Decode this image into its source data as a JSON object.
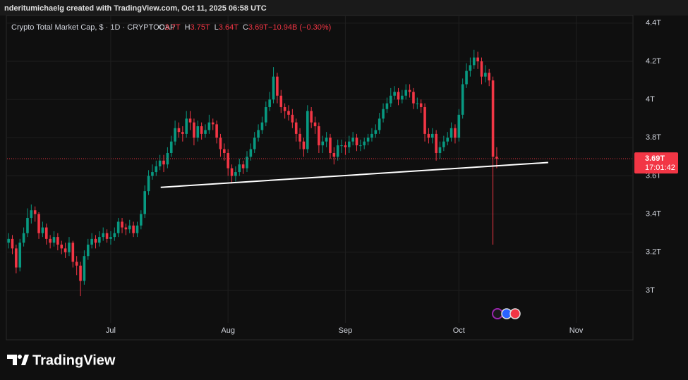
{
  "header": {
    "credit": "nderitumichaelg created with TradingView.com, Oct 11, 2025 06:58 UTC",
    "brand": "TradingView"
  },
  "chart_data": {
    "type": "candlestick",
    "title": "Crypto Total Market Cap, $ · 1D · CRYPTOCAP",
    "ohlc_legend": [
      {
        "key": "O",
        "value": "3.7T"
      },
      {
        "key": "H",
        "value": "3.75T"
      },
      {
        "key": "L",
        "value": "3.64T"
      },
      {
        "key": "C",
        "value": "3.69T"
      },
      {
        "key": "",
        "value": "−10.94B (−0.30%)"
      }
    ],
    "up_color": "#089981",
    "down_color": "#f23645",
    "open": [
      3.25,
      3.27,
      3.22,
      3.12,
      3.25,
      3.3,
      3.38,
      3.42,
      3.4,
      3.3,
      3.33,
      3.27,
      3.25,
      3.28,
      3.24,
      3.22,
      3.2,
      3.25,
      3.15,
      3.13,
      3.05,
      3.18,
      3.24,
      3.27,
      3.25,
      3.28,
      3.3,
      3.27,
      3.28,
      3.3,
      3.36,
      3.33,
      3.32,
      3.34,
      3.3,
      3.34,
      3.4,
      3.52,
      3.6,
      3.62,
      3.65,
      3.68,
      3.66,
      3.72,
      3.78,
      3.85,
      3.83,
      3.82,
      3.9,
      3.88,
      3.8,
      3.86,
      3.82,
      3.84,
      3.88,
      3.87,
      3.8,
      3.74,
      3.72,
      3.64,
      3.6,
      3.62,
      3.66,
      3.64,
      3.7,
      3.74,
      3.8,
      3.84,
      3.88,
      3.96,
      4.0,
      4.12,
      4.02,
      3.96,
      3.94,
      3.92,
      3.88,
      3.82,
      3.78,
      3.74,
      3.94,
      3.88,
      3.86,
      3.76,
      3.78,
      3.8,
      3.72,
      3.7,
      3.76,
      3.76,
      3.75,
      3.78,
      3.8,
      3.76,
      3.76,
      3.78,
      3.8,
      3.82,
      3.84,
      3.9,
      3.95,
      3.98,
      4.02,
      4.04,
      4.0,
      4.02,
      4.05,
      4.04,
      3.98,
      3.98,
      3.96,
      3.82,
      3.8,
      3.82,
      3.72,
      3.75,
      3.78,
      3.8,
      3.85,
      3.8,
      3.92,
      4.08,
      4.15,
      4.18,
      4.22,
      4.2,
      4.12,
      4.14,
      4.1,
      3.7
    ],
    "high": [
      3.3,
      3.29,
      3.24,
      3.27,
      3.33,
      3.43,
      3.45,
      3.44,
      3.41,
      3.36,
      3.35,
      3.29,
      3.31,
      3.3,
      3.26,
      3.25,
      3.28,
      3.26,
      3.18,
      3.15,
      3.21,
      3.27,
      3.3,
      3.29,
      3.31,
      3.33,
      3.32,
      3.31,
      3.33,
      3.38,
      3.38,
      3.35,
      3.37,
      3.36,
      3.36,
      3.42,
      3.55,
      3.63,
      3.66,
      3.68,
      3.71,
      3.71,
      3.75,
      3.81,
      3.89,
      3.88,
      3.86,
      3.94,
      3.94,
      3.9,
      3.89,
      3.88,
      3.87,
      3.92,
      3.9,
      3.89,
      3.82,
      3.77,
      3.74,
      3.66,
      3.65,
      3.69,
      3.68,
      3.73,
      3.77,
      3.83,
      3.87,
      3.91,
      3.99,
      4.04,
      4.17,
      4.14,
      4.05,
      3.98,
      3.97,
      3.95,
      3.9,
      3.85,
      3.8,
      3.97,
      3.96,
      3.91,
      3.88,
      3.81,
      3.83,
      3.82,
      3.75,
      3.79,
      3.79,
      3.78,
      3.81,
      3.83,
      3.82,
      3.79,
      3.8,
      3.82,
      3.85,
      3.87,
      3.93,
      3.98,
      4.01,
      4.06,
      4.07,
      4.06,
      4.05,
      4.08,
      4.08,
      4.06,
      4.01,
      4.0,
      3.98,
      3.85,
      3.85,
      3.84,
      3.78,
      3.81,
      3.83,
      3.88,
      3.87,
      3.95,
      4.11,
      4.19,
      4.22,
      4.26,
      4.25,
      4.22,
      4.18,
      4.16,
      4.12,
      3.75
    ],
    "low": [
      3.22,
      3.19,
      3.09,
      3.1,
      3.23,
      3.28,
      3.35,
      3.36,
      3.27,
      3.28,
      3.24,
      3.22,
      3.23,
      3.21,
      3.19,
      3.17,
      3.18,
      3.12,
      3.08,
      2.97,
      3.03,
      3.16,
      3.22,
      3.22,
      3.23,
      3.26,
      3.25,
      3.24,
      3.26,
      3.28,
      3.3,
      3.29,
      3.3,
      3.28,
      3.28,
      3.32,
      3.38,
      3.5,
      3.58,
      3.6,
      3.63,
      3.62,
      3.64,
      3.7,
      3.76,
      3.8,
      3.78,
      3.8,
      3.84,
      3.76,
      3.78,
      3.79,
      3.8,
      3.82,
      3.84,
      3.77,
      3.7,
      3.68,
      3.6,
      3.56,
      3.57,
      3.6,
      3.61,
      3.62,
      3.68,
      3.72,
      3.78,
      3.82,
      3.86,
      3.94,
      3.98,
      3.98,
      3.93,
      3.9,
      3.89,
      3.85,
      3.78,
      3.74,
      3.7,
      3.72,
      3.85,
      3.82,
      3.72,
      3.72,
      3.75,
      3.69,
      3.66,
      3.68,
      3.72,
      3.71,
      3.72,
      3.76,
      3.73,
      3.73,
      3.74,
      3.76,
      3.78,
      3.8,
      3.82,
      3.88,
      3.93,
      3.96,
      4.0,
      3.97,
      3.98,
      4.0,
      4.01,
      3.95,
      3.95,
      3.93,
      3.78,
      3.77,
      3.77,
      3.68,
      3.69,
      3.73,
      3.76,
      3.78,
      3.77,
      3.78,
      3.9,
      4.06,
      4.12,
      4.16,
      4.16,
      4.08,
      4.09,
      4.07,
      3.24,
      3.64
    ],
    "close": [
      3.27,
      3.22,
      3.12,
      3.25,
      3.3,
      3.38,
      3.42,
      3.4,
      3.3,
      3.33,
      3.27,
      3.25,
      3.28,
      3.24,
      3.22,
      3.2,
      3.25,
      3.15,
      3.13,
      3.05,
      3.18,
      3.24,
      3.27,
      3.25,
      3.28,
      3.3,
      3.27,
      3.28,
      3.3,
      3.36,
      3.33,
      3.32,
      3.34,
      3.3,
      3.34,
      3.4,
      3.52,
      3.6,
      3.62,
      3.65,
      3.68,
      3.66,
      3.72,
      3.78,
      3.85,
      3.83,
      3.82,
      3.9,
      3.88,
      3.8,
      3.86,
      3.82,
      3.84,
      3.88,
      3.87,
      3.8,
      3.74,
      3.72,
      3.64,
      3.6,
      3.62,
      3.66,
      3.64,
      3.7,
      3.74,
      3.8,
      3.84,
      3.88,
      3.96,
      4.0,
      4.12,
      4.02,
      3.96,
      3.94,
      3.92,
      3.88,
      3.82,
      3.78,
      3.74,
      3.94,
      3.88,
      3.86,
      3.76,
      3.78,
      3.8,
      3.72,
      3.7,
      3.76,
      3.76,
      3.75,
      3.78,
      3.8,
      3.76,
      3.76,
      3.78,
      3.8,
      3.82,
      3.84,
      3.9,
      3.95,
      3.98,
      4.02,
      4.04,
      4.0,
      4.02,
      4.05,
      4.04,
      3.98,
      3.98,
      3.96,
      3.82,
      3.8,
      3.82,
      3.72,
      3.75,
      3.78,
      3.8,
      3.85,
      3.8,
      3.92,
      4.08,
      4.15,
      4.18,
      4.22,
      4.2,
      4.12,
      4.14,
      4.1,
      3.7,
      3.69
    ],
    "xlim": [
      -0.4,
      165
    ],
    "ylim": [
      2.83,
      4.44
    ],
    "xticks": [
      {
        "value": 27,
        "label": "Jul"
      },
      {
        "value": 58,
        "label": "Aug"
      },
      {
        "value": 89,
        "label": "Sep"
      },
      {
        "value": 119,
        "label": "Oct"
      },
      {
        "value": 150,
        "label": "Nov"
      }
    ],
    "yticks": [
      {
        "value": 3,
        "label": "3T"
      },
      {
        "value": 3.2,
        "label": "3.2T"
      },
      {
        "value": 3.4,
        "label": "3.4T"
      },
      {
        "value": 3.6,
        "label": "3.6T"
      },
      {
        "value": 3.8,
        "label": "3.8T"
      },
      {
        "value": 4,
        "label": "4T"
      },
      {
        "value": 4.2,
        "label": "4.2T"
      },
      {
        "value": 4.4,
        "label": "4.4T"
      }
    ],
    "grid": true,
    "trendline": {
      "x": [
        40.2,
        142.6
      ],
      "y": [
        3.54,
        3.67
      ],
      "color": "#ffffff"
    },
    "last_price": {
      "value": 3.69,
      "label": "3.69T",
      "countdown": "17:01:42"
    }
  }
}
